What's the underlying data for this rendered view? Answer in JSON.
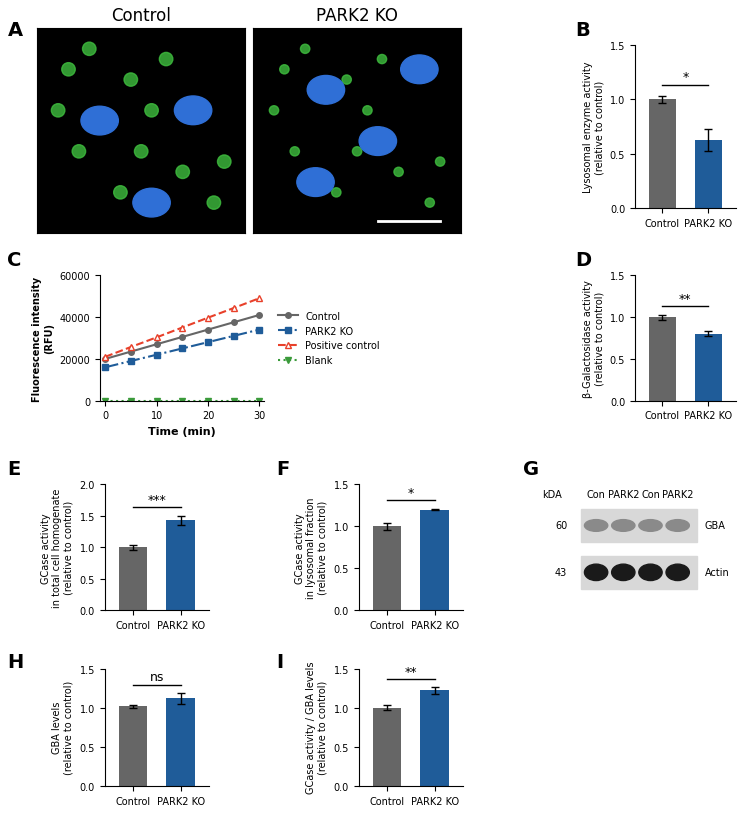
{
  "chart_data": [
    {
      "panel": "A",
      "type": "image",
      "titles": [
        "Control",
        "PARK2 KO"
      ]
    },
    {
      "panel": "B",
      "type": "bar",
      "y_label": "Lysosomal enzyme activity\n(relative to control)",
      "categories": [
        "Control",
        "PARK2 KO"
      ],
      "values": [
        1.0,
        0.63
      ],
      "errors": [
        0.03,
        0.1
      ],
      "colors": [
        "#666666",
        "#1f5c99"
      ],
      "ylim": [
        0,
        1.5
      ],
      "yticks": [
        0.0,
        0.5,
        1.0,
        1.5
      ],
      "significance": "*"
    },
    {
      "panel": "C",
      "type": "line",
      "x_label": "Time (min)",
      "y_label": "Fluorescence intensity\n(RFU)",
      "x": [
        0,
        5,
        10,
        15,
        20,
        25,
        30
      ],
      "series": [
        {
          "name": "Control",
          "color": "#666666",
          "marker": "circle",
          "line_style": "solid",
          "values": [
            20000,
            23500,
            27000,
            30500,
            34000,
            37500,
            41000
          ]
        },
        {
          "name": "PARK2 KO",
          "color": "#1f5c99",
          "marker": "square",
          "line_style": "dashdot",
          "values": [
            16000,
            19000,
            22000,
            25000,
            28000,
            31000,
            34000
          ]
        },
        {
          "name": "Positive control",
          "color": "#e8402a",
          "marker": "triangle",
          "line_style": "dashed",
          "values": [
            21000,
            25700,
            30300,
            35000,
            39700,
            44300,
            49000
          ]
        },
        {
          "name": "Blank",
          "color": "#3a9a3a",
          "marker": "triangle_down",
          "line_style": "dotted",
          "values": [
            0,
            0,
            0,
            0,
            0,
            0,
            0
          ]
        }
      ],
      "xlim": [
        -1,
        31
      ],
      "ylim": [
        0,
        60000
      ],
      "xticks": [
        0,
        10,
        20,
        30
      ],
      "yticks": [
        0,
        20000,
        40000,
        60000
      ],
      "legend": "right"
    },
    {
      "panel": "D",
      "type": "bar",
      "y_label": "β-Galactosidase activity\n(relative to control)",
      "categories": [
        "Control",
        "PARK2 KO"
      ],
      "values": [
        1.0,
        0.8
      ],
      "errors": [
        0.03,
        0.03
      ],
      "colors": [
        "#666666",
        "#1f5c99"
      ],
      "ylim": [
        0,
        1.5
      ],
      "yticks": [
        0.0,
        0.5,
        1.0,
        1.5
      ],
      "significance": "**"
    },
    {
      "panel": "E",
      "type": "bar",
      "y_label": "GCase activity\nin total cell homogenate\n(relative to control)",
      "categories": [
        "Control",
        "PARK2 KO"
      ],
      "values": [
        1.0,
        1.43
      ],
      "errors": [
        0.04,
        0.07
      ],
      "colors": [
        "#666666",
        "#1f5c99"
      ],
      "ylim": [
        0,
        2.0
      ],
      "yticks": [
        0.0,
        0.5,
        1.0,
        1.5,
        2.0
      ],
      "significance": "***"
    },
    {
      "panel": "F",
      "type": "bar",
      "y_label": "GCase activity\nin lysosomal fraction\n(relative to control)",
      "categories": [
        "Control",
        "PARK2 KO"
      ],
      "values": [
        1.0,
        1.2
      ],
      "errors": [
        0.04,
        0.01
      ],
      "colors": [
        "#666666",
        "#1f5c99"
      ],
      "ylim": [
        0,
        1.5
      ],
      "yticks": [
        0.0,
        0.5,
        1.0,
        1.5
      ],
      "significance": "*"
    },
    {
      "panel": "G",
      "type": "blot",
      "unit_label": "kDA",
      "lanes": [
        "Con",
        "PARK2",
        "Con",
        "PARK2"
      ],
      "bands": [
        {
          "name": "GBA",
          "size": 60
        },
        {
          "name": "Actin",
          "size": 43
        }
      ]
    },
    {
      "panel": "H",
      "type": "bar",
      "y_label": "GBA levels\n(relative to control)",
      "categories": [
        "Control",
        "PARK2 KO"
      ],
      "values": [
        1.02,
        1.12
      ],
      "errors": [
        0.02,
        0.07
      ],
      "colors": [
        "#666666",
        "#1f5c99"
      ],
      "ylim": [
        0,
        1.5
      ],
      "yticks": [
        0.0,
        0.5,
        1.0,
        1.5
      ],
      "significance": "ns"
    },
    {
      "panel": "I",
      "type": "bar",
      "y_label": "GCase activity / GBA levels\n(relative to control)",
      "categories": [
        "Control",
        "PARK2 KO"
      ],
      "values": [
        1.0,
        1.22
      ],
      "errors": [
        0.03,
        0.04
      ],
      "colors": [
        "#666666",
        "#1f5c99"
      ],
      "ylim": [
        0,
        1.5
      ],
      "yticks": [
        0.0,
        0.5,
        1.0,
        1.5
      ],
      "significance": "**"
    }
  ]
}
